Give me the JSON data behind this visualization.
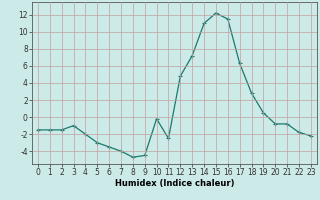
{
  "x": [
    0,
    1,
    2,
    3,
    4,
    5,
    6,
    7,
    8,
    9,
    10,
    11,
    12,
    13,
    14,
    15,
    16,
    17,
    18,
    19,
    20,
    21,
    22,
    23
  ],
  "y": [
    -1.5,
    -1.5,
    -1.5,
    -1.0,
    -2.0,
    -3.0,
    -3.5,
    -4.0,
    -4.7,
    -4.5,
    -0.2,
    -2.5,
    4.8,
    7.2,
    11.0,
    12.2,
    11.5,
    6.3,
    2.8,
    0.5,
    -0.8,
    -0.8,
    -1.8,
    -2.2
  ],
  "line_color": "#1a7a6e",
  "marker": "+",
  "marker_size": 3,
  "marker_linewidth": 0.8,
  "line_width": 0.9,
  "bg_color": "#cceae8",
  "grid_color": "#c0a0a0",
  "xlabel": "Humidex (Indice chaleur)",
  "xlim": [
    -0.5,
    23.5
  ],
  "ylim": [
    -5.5,
    13.5
  ],
  "yticks": [
    -4,
    -2,
    0,
    2,
    4,
    6,
    8,
    10,
    12
  ],
  "xticks": [
    0,
    1,
    2,
    3,
    4,
    5,
    6,
    7,
    8,
    9,
    10,
    11,
    12,
    13,
    14,
    15,
    16,
    17,
    18,
    19,
    20,
    21,
    22,
    23
  ],
  "label_fontsize": 6,
  "tick_fontsize": 5.5
}
